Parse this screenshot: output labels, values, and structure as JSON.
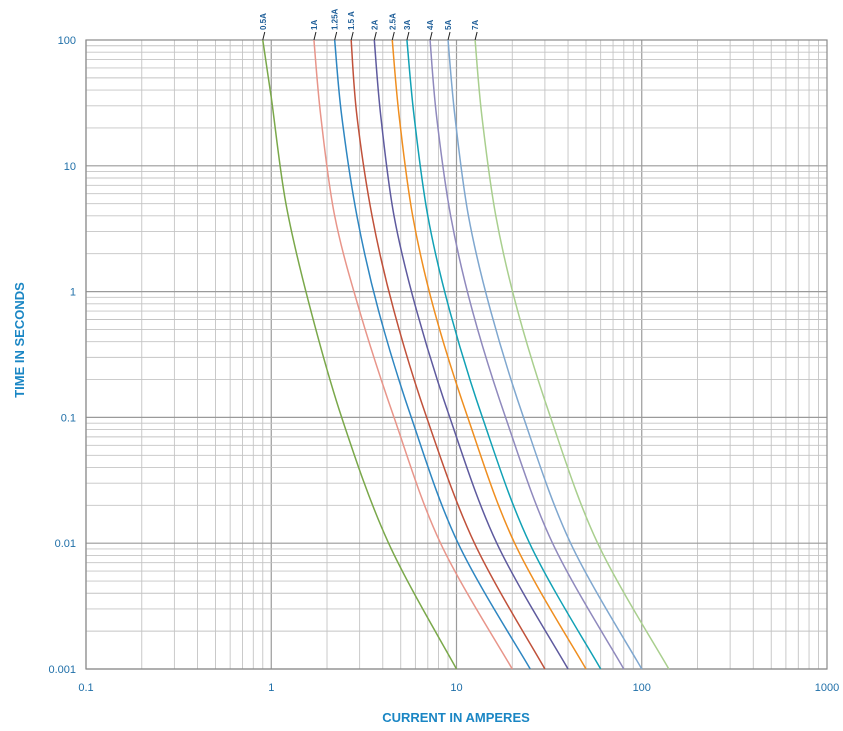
{
  "chart_data": {
    "type": "line",
    "xlabel": "CURRENT IN AMPERES",
    "ylabel": "TIME IN SECONDS",
    "x_scale": "log",
    "y_scale": "log",
    "xlim": [
      0.1,
      1000
    ],
    "ylim": [
      0.001,
      100
    ],
    "grid": true,
    "x_ticks": [
      {
        "value": 0.1,
        "label": "0.1"
      },
      {
        "value": 1,
        "label": "1"
      },
      {
        "value": 10,
        "label": "10"
      },
      {
        "value": 100,
        "label": "100"
      },
      {
        "value": 1000,
        "label": "1000"
      }
    ],
    "y_ticks": [
      {
        "value": 100,
        "label": "100"
      },
      {
        "value": 10,
        "label": "10"
      },
      {
        "value": 1,
        "label": "1"
      },
      {
        "value": 0.1,
        "label": "0.1"
      },
      {
        "value": 0.01,
        "label": "0.01"
      },
      {
        "value": 0.001,
        "label": "0.001"
      }
    ],
    "series": [
      {
        "name": "0.5A",
        "color": "#7aa84a",
        "x": [
          0.9,
          1.0,
          1.2,
          1.6,
          2.4,
          4.3,
          10
        ],
        "y": [
          100,
          35,
          5,
          0.8,
          0.1,
          0.01,
          0.001
        ]
      },
      {
        "name": "1A",
        "color": "#e8958a",
        "x": [
          1.7,
          1.85,
          2.2,
          3.0,
          4.6,
          8.2,
          20
        ],
        "y": [
          100,
          25,
          4,
          0.7,
          0.1,
          0.01,
          0.001
        ]
      },
      {
        "name": "1.25A",
        "color": "#2e86c1",
        "x": [
          2.2,
          2.4,
          2.9,
          3.8,
          5.7,
          10.2,
          25
        ],
        "y": [
          100,
          25,
          4,
          0.7,
          0.1,
          0.01,
          0.001
        ]
      },
      {
        "name": "1.5 A",
        "color": "#c0513a",
        "x": [
          2.7,
          2.9,
          3.5,
          4.6,
          6.9,
          12.5,
          30
        ],
        "y": [
          100,
          25,
          4,
          0.7,
          0.1,
          0.01,
          0.001
        ]
      },
      {
        "name": "2A",
        "color": "#5e5a9e",
        "x": [
          3.6,
          3.9,
          4.6,
          6.1,
          9.2,
          16.5,
          40
        ],
        "y": [
          100,
          25,
          4,
          0.7,
          0.1,
          0.01,
          0.001
        ]
      },
      {
        "name": "2.5A",
        "color": "#ef8e1f",
        "x": [
          4.5,
          4.9,
          5.8,
          7.6,
          11.5,
          20.6,
          50
        ],
        "y": [
          100,
          25,
          4,
          0.7,
          0.1,
          0.01,
          0.001
        ]
      },
      {
        "name": "3A",
        "color": "#11a1b5",
        "x": [
          5.4,
          5.9,
          7.0,
          9.2,
          13.8,
          24.8,
          60
        ],
        "y": [
          100,
          25,
          4,
          0.7,
          0.1,
          0.01,
          0.001
        ]
      },
      {
        "name": "4A",
        "color": "#8f89bd",
        "x": [
          7.2,
          7.8,
          9.3,
          12.2,
          18.4,
          33,
          80
        ],
        "y": [
          100,
          25,
          4,
          0.7,
          0.1,
          0.01,
          0.001
        ]
      },
      {
        "name": "5A",
        "color": "#7fa7cf",
        "x": [
          9.0,
          9.8,
          11.6,
          15.3,
          23,
          41.3,
          100
        ],
        "y": [
          100,
          25,
          4,
          0.7,
          0.1,
          0.01,
          0.001
        ]
      },
      {
        "name": "7A",
        "color": "#a9cf8e",
        "x": [
          12.6,
          13.7,
          16.3,
          21.4,
          32.2,
          57.8,
          140
        ],
        "y": [
          100,
          25,
          4,
          0.7,
          0.1,
          0.01,
          0.001
        ]
      }
    ]
  }
}
